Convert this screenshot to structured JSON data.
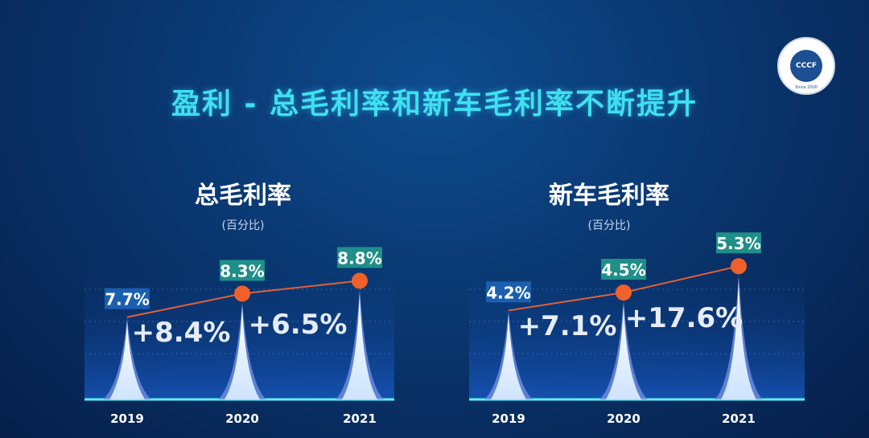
{
  "title": "盈利 - 总毛利率和新车毛利率不断提升",
  "logo": {
    "text": "CCCF",
    "since": "Since 2000"
  },
  "colors": {
    "title": "#3fe0f0",
    "dot": "#f0602a",
    "label_bg": "#1a6fb0",
    "label_bg2": "#1f8f88"
  },
  "chart_data": [
    {
      "type": "bar",
      "title": "总毛利率",
      "unit": "(百分比)",
      "categories": [
        "2019",
        "2020",
        "2021"
      ],
      "values": [
        7.7,
        8.3,
        8.8
      ],
      "value_labels": [
        "7.7%",
        "8.3%",
        "8.8%"
      ],
      "growth_labels": [
        "+8.4%",
        "+6.5%"
      ],
      "trend_line": true
    },
    {
      "type": "bar",
      "title": "新车毛利率",
      "unit": "(百分比)",
      "categories": [
        "2019",
        "2020",
        "2021"
      ],
      "values": [
        4.2,
        4.5,
        5.3
      ],
      "value_labels": [
        "4.2%",
        "4.5%",
        "5.3%"
      ],
      "growth_labels": [
        "+7.1%",
        "+17.6%"
      ],
      "trend_line": true
    }
  ]
}
